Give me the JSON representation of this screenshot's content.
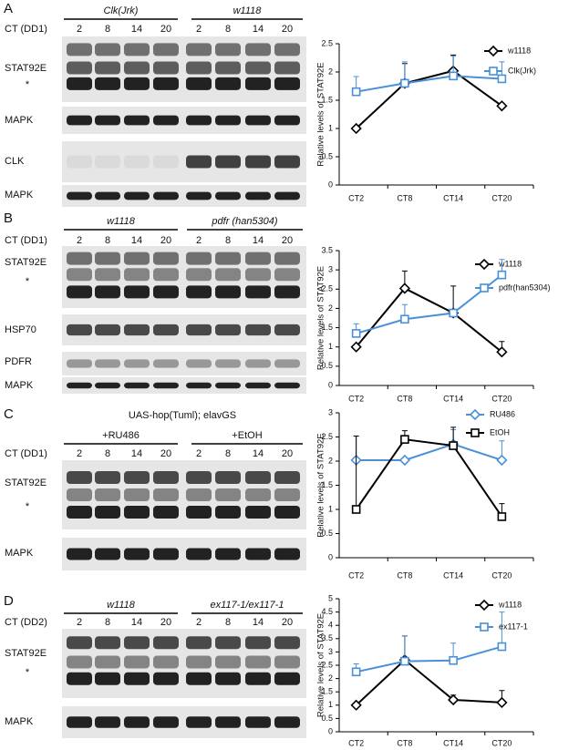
{
  "panels": [
    {
      "letter": "A",
      "groups": [
        "Clk(Jrk)",
        "w1118"
      ],
      "ct_label": "CT (DD1)",
      "lanes": [
        "2",
        "8",
        "14",
        "20",
        "2",
        "8",
        "14",
        "20"
      ],
      "blots": [
        "STAT92E",
        "MAPK",
        "CLK",
        "MAPK"
      ],
      "asterisk": "*"
    },
    {
      "letter": "B",
      "groups": [
        "w1118",
        "pdfr (han5304)"
      ],
      "ct_label": "CT (DD1)",
      "lanes": [
        "2",
        "8",
        "14",
        "20",
        "2",
        "8",
        "14",
        "20"
      ],
      "blots": [
        "STAT92E",
        "HSP70",
        "PDFR",
        "MAPK"
      ],
      "asterisk": "*"
    },
    {
      "letter": "C",
      "header": "UAS-hop(Tuml); elavGS",
      "groups": [
        "+RU486",
        "+EtOH"
      ],
      "ct_label": "CT (DD1)",
      "lanes": [
        "2",
        "8",
        "14",
        "20",
        "2",
        "8",
        "14",
        "20"
      ],
      "blots": [
        "STAT92E",
        "MAPK"
      ],
      "asterisk": "*"
    },
    {
      "letter": "D",
      "groups": [
        "w1118",
        "ex117-1/ex117-1"
      ],
      "ct_label": "CT (DD2)",
      "lanes": [
        "2",
        "8",
        "14",
        "20",
        "2",
        "8",
        "14",
        "20"
      ],
      "blots": [
        "STAT92E",
        "MAPK"
      ],
      "asterisk": "*"
    }
  ],
  "chart_data": [
    {
      "type": "line",
      "y_label": "Relative levels of STAT92E",
      "categories": [
        "CT2",
        "CT8",
        "CT14",
        "CT20"
      ],
      "ylim": [
        0,
        2.5
      ],
      "yticks": [
        0,
        0.5,
        1,
        1.5,
        2,
        2.5
      ],
      "series": [
        {
          "name": "w1118",
          "color": "#000000",
          "marker": "diamond",
          "values": [
            1.0,
            1.8,
            2.02,
            1.4
          ],
          "errors": [
            0,
            0.35,
            0.28,
            0
          ]
        },
        {
          "name": "Clk(Jrk)",
          "color": "#4a90d9",
          "marker": "square",
          "values": [
            1.65,
            1.8,
            1.93,
            1.88
          ],
          "errors": [
            0.27,
            0.38,
            0.35,
            0.3
          ]
        }
      ]
    },
    {
      "type": "line",
      "y_label": "Relative levels of STAT92E",
      "categories": [
        "CT2",
        "CT8",
        "CT14",
        "CT20"
      ],
      "ylim": [
        0,
        3.5
      ],
      "yticks": [
        0,
        0.5,
        1,
        1.5,
        2,
        2.5,
        3,
        3.5
      ],
      "series": [
        {
          "name": "w1118",
          "color": "#000000",
          "marker": "diamond",
          "values": [
            1.0,
            2.52,
            1.88,
            0.87
          ],
          "errors": [
            0,
            0.45,
            0.7,
            0.27
          ]
        },
        {
          "name": "pdfr(han5304)",
          "color": "#4a90d9",
          "marker": "square",
          "values": [
            1.35,
            1.72,
            1.88,
            2.87
          ],
          "errors": [
            0.25,
            0.38,
            0,
            0.4
          ]
        }
      ]
    },
    {
      "type": "line",
      "y_label": "Relative levels of STAT92E",
      "categories": [
        "CT2",
        "CT8",
        "CT14",
        "CT20"
      ],
      "ylim": [
        0,
        3
      ],
      "yticks": [
        0,
        0.5,
        1,
        1.5,
        2,
        2.5,
        3
      ],
      "series": [
        {
          "name": "RU486",
          "color": "#4a90d9",
          "marker": "diamond",
          "values": [
            2.02,
            2.02,
            2.35,
            2.02
          ],
          "errors": [
            0.5,
            0,
            0.3,
            0.4
          ]
        },
        {
          "name": "EtOH",
          "color": "#000000",
          "marker": "square",
          "values": [
            1.0,
            2.45,
            2.32,
            0.85
          ],
          "errors": [
            1.52,
            0.18,
            0.38,
            0.27
          ]
        }
      ]
    },
    {
      "type": "line",
      "y_label": "Relative levels of STAT92E",
      "categories": [
        "CT2",
        "CT8",
        "CT14",
        "CT20"
      ],
      "ylim": [
        0,
        5
      ],
      "yticks": [
        0,
        0.5,
        1,
        1.5,
        2,
        2.5,
        3,
        3.5,
        4,
        4.5,
        5
      ],
      "series": [
        {
          "name": "w1118",
          "color": "#000000",
          "marker": "diamond",
          "values": [
            1.0,
            2.7,
            1.2,
            1.1
          ],
          "errors": [
            0,
            0.9,
            0.18,
            0.45
          ]
        },
        {
          "name": "ex117-1",
          "color": "#4a90d9",
          "marker": "square",
          "values": [
            2.25,
            2.65,
            2.68,
            3.2
          ],
          "errors": [
            0.3,
            0.95,
            0.65,
            1.3
          ]
        }
      ]
    }
  ]
}
